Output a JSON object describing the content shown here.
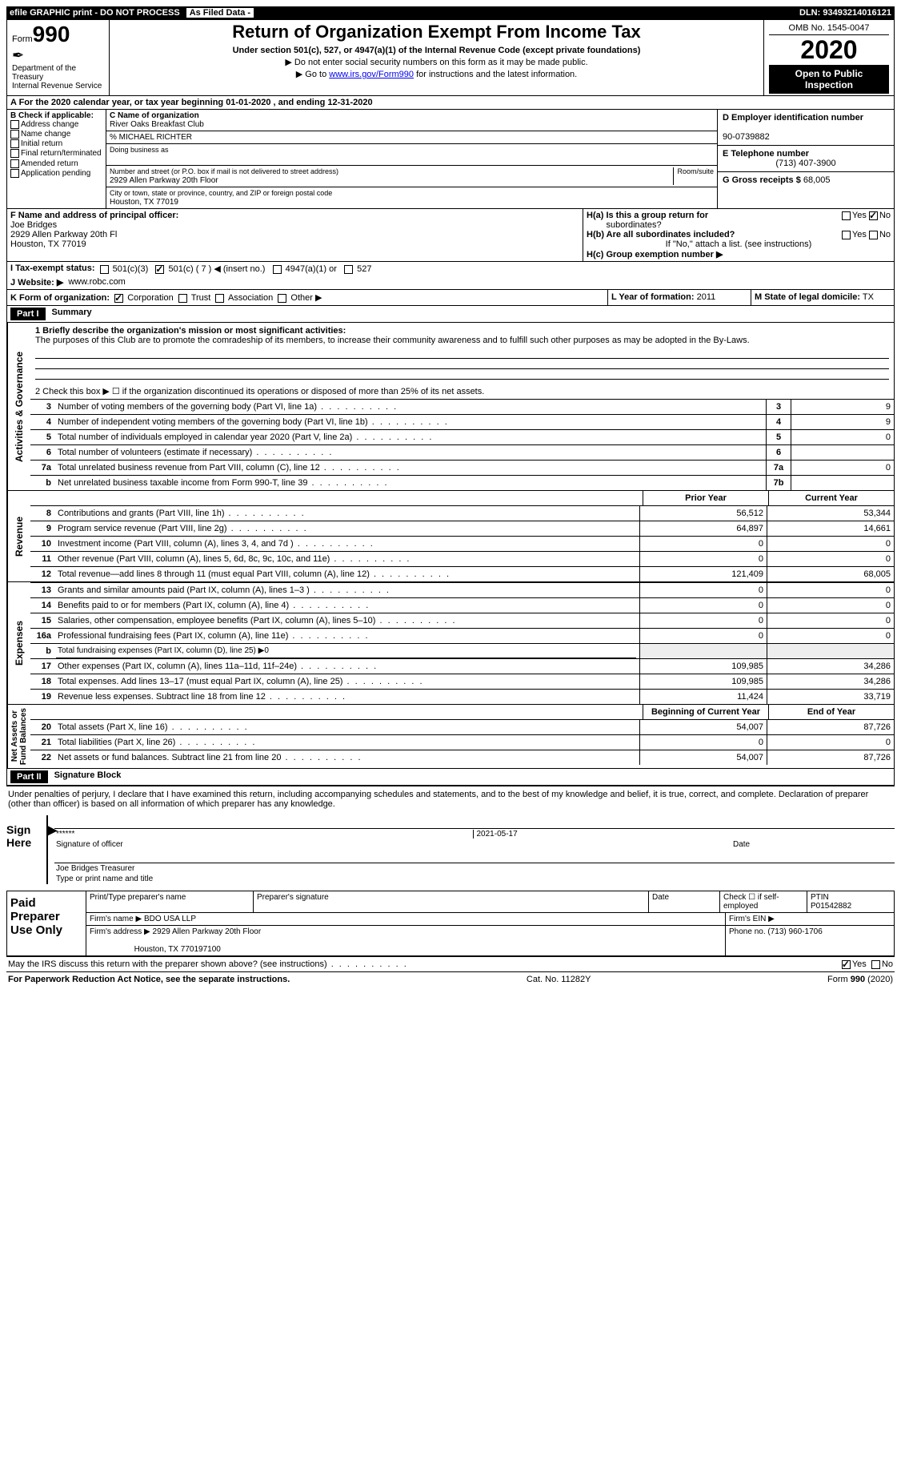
{
  "header_bar": {
    "efile": "efile GRAPHIC print - DO NOT PROCESS",
    "asfiled": "As Filed Data -",
    "dln_label": "DLN:",
    "dln": "93493214016121"
  },
  "form_header": {
    "form_word": "Form",
    "form_no": "990",
    "dept": "Department of the Treasury\nInternal Revenue Service",
    "title": "Return of Organization Exempt From Income Tax",
    "subtitle": "Under section 501(c), 527, or 4947(a)(1) of the Internal Revenue Code (except private foundations)",
    "instr1": "▶ Do not enter social security numbers on this form as it may be made public.",
    "instr2_pre": "▶ Go to ",
    "instr2_link": "www.irs.gov/Form990",
    "instr2_post": " for instructions and the latest information.",
    "omb": "OMB No. 1545-0047",
    "year": "2020",
    "inspection": "Open to Public Inspection"
  },
  "row_a": "A  For the 2020 calendar year, or tax year beginning 01-01-2020  , and ending 12-31-2020",
  "section_b": {
    "title": "B Check if applicable:",
    "items": [
      "Address change",
      "Name change",
      "Initial return",
      "Final return/terminated",
      "Amended return",
      "Application pending"
    ]
  },
  "section_c": {
    "name_label": "C Name of organization",
    "name": "River Oaks Breakfast Club",
    "care_of": "% MICHAEL RICHTER",
    "dba_label": "Doing business as",
    "dba": "",
    "addr_label": "Number and street (or P.O. box if mail is not delivered to street address)",
    "room_label": "Room/suite",
    "addr": "2929 Allen Parkway 20th Floor",
    "city_label": "City or town, state or province, country, and ZIP or foreign postal code",
    "city": "Houston, TX  77019"
  },
  "section_d": {
    "ein_label": "D Employer identification number",
    "ein": "90-0739882",
    "phone_label": "E Telephone number",
    "phone": "(713) 407-3900",
    "gross_label": "G Gross receipts $",
    "gross": "68,005"
  },
  "section_f": {
    "label": "F  Name and address of principal officer:",
    "name": "Joe Bridges",
    "addr": "2929 Allen Parkway 20th Fl",
    "city": "Houston, TX  77019"
  },
  "section_h": {
    "a_label": "H(a)  Is this a group return for",
    "a_label2": "subordinates?",
    "yes": "Yes",
    "no": "No",
    "b_label": "H(b)  Are all subordinates included?",
    "b_note": "If \"No,\" attach a list. (see instructions)",
    "c_label": "H(c)  Group exemption number ▶"
  },
  "row_i": {
    "label": "I  Tax-exempt status:",
    "c3": "501(c)(3)",
    "c": "501(c) ( 7  ) ◀ (insert no.)",
    "a1": "4947(a)(1) or",
    "s527": "527"
  },
  "row_j": {
    "label": "J  Website: ▶",
    "value": "www.robc.com"
  },
  "row_k": {
    "label": "K Form of organization:",
    "corp": "Corporation",
    "trust": "Trust",
    "assoc": "Association",
    "other": "Other ▶"
  },
  "row_l": {
    "label": "L Year of formation:",
    "value": "2011"
  },
  "row_m": {
    "label": "M State of legal domicile:",
    "value": "TX"
  },
  "part1": {
    "num": "Part I",
    "title": "Summary"
  },
  "mission": {
    "label": "1 Briefly describe the organization's mission or most significant activities:",
    "text": "The purposes of this Club are to promote the comradeship of its members, to increase their community awareness and to fulfill such other purposes as may be adopted in the By-Laws."
  },
  "line2": "2  Check this box ▶ ☐ if the organization discontinued its operations or disposed of more than 25% of its net assets.",
  "gov_lines": [
    {
      "n": "3",
      "t": "Number of voting members of the governing body (Part VI, line 1a)",
      "bn": "3",
      "v": "9"
    },
    {
      "n": "4",
      "t": "Number of independent voting members of the governing body (Part VI, line 1b)",
      "bn": "4",
      "v": "9"
    },
    {
      "n": "5",
      "t": "Total number of individuals employed in calendar year 2020 (Part V, line 2a)",
      "bn": "5",
      "v": "0"
    },
    {
      "n": "6",
      "t": "Total number of volunteers (estimate if necessary)",
      "bn": "6",
      "v": ""
    },
    {
      "n": "7a",
      "t": "Total unrelated business revenue from Part VIII, column (C), line 12",
      "bn": "7a",
      "v": "0"
    },
    {
      "n": "b",
      "t": "Net unrelated business taxable income from Form 990-T, line 39",
      "bn": "7b",
      "v": ""
    }
  ],
  "fin_headers": {
    "prior": "Prior Year",
    "current": "Current Year"
  },
  "revenue": [
    {
      "n": "8",
      "t": "Contributions and grants (Part VIII, line 1h)",
      "p": "56,512",
      "c": "53,344"
    },
    {
      "n": "9",
      "t": "Program service revenue (Part VIII, line 2g)",
      "p": "64,897",
      "c": "14,661"
    },
    {
      "n": "10",
      "t": "Investment income (Part VIII, column (A), lines 3, 4, and 7d )",
      "p": "0",
      "c": "0"
    },
    {
      "n": "11",
      "t": "Other revenue (Part VIII, column (A), lines 5, 6d, 8c, 9c, 10c, and 11e)",
      "p": "0",
      "c": "0"
    },
    {
      "n": "12",
      "t": "Total revenue—add lines 8 through 11 (must equal Part VIII, column (A), line 12)",
      "p": "121,409",
      "c": "68,005"
    }
  ],
  "expenses": [
    {
      "n": "13",
      "t": "Grants and similar amounts paid (Part IX, column (A), lines 1–3 )",
      "p": "0",
      "c": "0"
    },
    {
      "n": "14",
      "t": "Benefits paid to or for members (Part IX, column (A), line 4)",
      "p": "0",
      "c": "0"
    },
    {
      "n": "15",
      "t": "Salaries, other compensation, employee benefits (Part IX, column (A), lines 5–10)",
      "p": "0",
      "c": "0"
    },
    {
      "n": "16a",
      "t": "Professional fundraising fees (Part IX, column (A), line 11e)",
      "p": "0",
      "c": "0"
    },
    {
      "n": "b",
      "t": "Total fundraising expenses (Part IX, column (D), line 25) ▶0",
      "p": "",
      "c": ""
    },
    {
      "n": "17",
      "t": "Other expenses (Part IX, column (A), lines 11a–11d, 11f–24e)",
      "p": "109,985",
      "c": "34,286"
    },
    {
      "n": "18",
      "t": "Total expenses. Add lines 13–17 (must equal Part IX, column (A), line 25)",
      "p": "109,985",
      "c": "34,286"
    },
    {
      "n": "19",
      "t": "Revenue less expenses. Subtract line 18 from line 12",
      "p": "11,424",
      "c": "33,719"
    }
  ],
  "net_headers": {
    "begin": "Beginning of Current Year",
    "end": "End of Year"
  },
  "netassets": [
    {
      "n": "20",
      "t": "Total assets (Part X, line 16)",
      "p": "54,007",
      "c": "87,726"
    },
    {
      "n": "21",
      "t": "Total liabilities (Part X, line 26)",
      "p": "0",
      "c": "0"
    },
    {
      "n": "22",
      "t": "Net assets or fund balances. Subtract line 21 from line 20",
      "p": "54,007",
      "c": "87,726"
    }
  ],
  "part2": {
    "num": "Part II",
    "title": "Signature Block"
  },
  "sig": {
    "penalty": "Under penalties of perjury, I declare that I have examined this return, including accompanying schedules and statements, and to the best of my knowledge and belief, it is true, correct, and complete. Declaration of preparer (other than officer) is based on all information of which preparer has any knowledge.",
    "sign_here": "Sign Here",
    "stars": "******",
    "sig_officer": "Signature of officer",
    "date": "2021-05-17",
    "date_label": "Date",
    "name_title": "Joe Bridges Treasurer",
    "name_title_label": "Type or print name and title"
  },
  "prep": {
    "label": "Paid Preparer Use Only",
    "print_label": "Print/Type preparer's name",
    "sig_label": "Preparer's signature",
    "date_label": "Date",
    "check_label": "Check ☐ if self-employed",
    "ptin_label": "PTIN",
    "ptin": "P01542882",
    "firm_name_label": "Firm's name  ▶",
    "firm_name": "BDO USA LLP",
    "firm_ein_label": "Firm's EIN ▶",
    "firm_addr_label": "Firm's address ▶",
    "firm_addr": "2929 Allen Parkway 20th Floor",
    "firm_city": "Houston, TX  770197100",
    "phone_label": "Phone no.",
    "phone": "(713) 960-1706"
  },
  "discuss": {
    "text": "May the IRS discuss this return with the preparer shown above? (see instructions)",
    "yes": "Yes",
    "no": "No"
  },
  "footer": {
    "paperwork": "For Paperwork Reduction Act Notice, see the separate instructions.",
    "cat": "Cat. No. 11282Y",
    "form": "Form 990 (2020)"
  }
}
